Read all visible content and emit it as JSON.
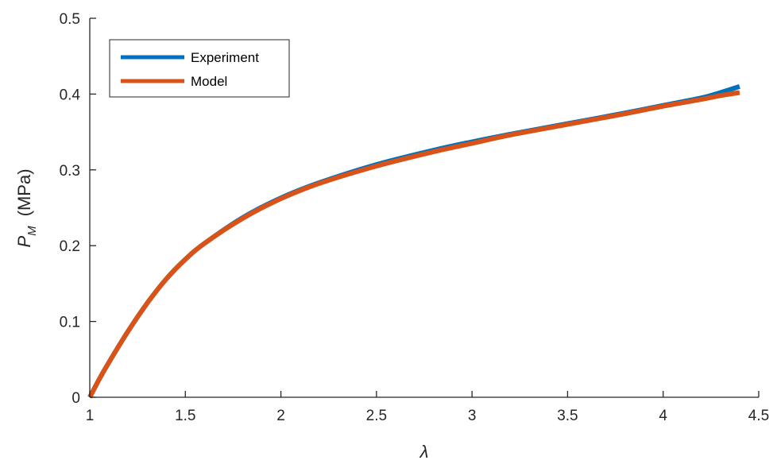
{
  "chart_data": {
    "type": "line",
    "xlabel": "λ",
    "ylabel": {
      "main": "P",
      "subscript": "M",
      "unit": "(MPa)"
    },
    "xlim": [
      1,
      4.5
    ],
    "ylim": [
      0,
      0.5
    ],
    "xticks": [
      1,
      1.5,
      2,
      2.5,
      3,
      3.5,
      4,
      4.5
    ],
    "xtick_labels": [
      "1",
      "1.5",
      "2",
      "2.5",
      "3",
      "3.5",
      "4",
      "4.5"
    ],
    "yticks": [
      0,
      0.1,
      0.2,
      0.3,
      0.4,
      0.5
    ],
    "ytick_labels": [
      "0",
      "0.1",
      "0.2",
      "0.3",
      "0.4",
      "0.5"
    ],
    "grid": false,
    "legend_position": "top-left",
    "series": [
      {
        "name": "Experiment",
        "color": "#0072BD",
        "x": [
          1.0,
          1.05,
          1.1,
          1.2,
          1.3,
          1.4,
          1.5,
          1.6,
          1.8,
          2.0,
          2.2,
          2.5,
          2.8,
          3.0,
          3.2,
          3.5,
          3.8,
          4.0,
          4.2,
          4.3,
          4.4
        ],
        "y": [
          0.0,
          0.024,
          0.046,
          0.087,
          0.124,
          0.156,
          0.182,
          0.203,
          0.237,
          0.263,
          0.283,
          0.307,
          0.326,
          0.337,
          0.347,
          0.361,
          0.375,
          0.385,
          0.395,
          0.402,
          0.41
        ]
      },
      {
        "name": "Model",
        "color": "#D95319",
        "x": [
          1.0,
          1.05,
          1.1,
          1.2,
          1.3,
          1.4,
          1.5,
          1.6,
          1.8,
          2.0,
          2.2,
          2.5,
          2.8,
          3.0,
          3.2,
          3.5,
          3.8,
          4.0,
          4.2,
          4.3,
          4.4
        ],
        "y": [
          0.0,
          0.024,
          0.046,
          0.087,
          0.124,
          0.156,
          0.182,
          0.203,
          0.236,
          0.262,
          0.282,
          0.305,
          0.324,
          0.335,
          0.346,
          0.36,
          0.374,
          0.384,
          0.393,
          0.398,
          0.402
        ]
      }
    ]
  }
}
